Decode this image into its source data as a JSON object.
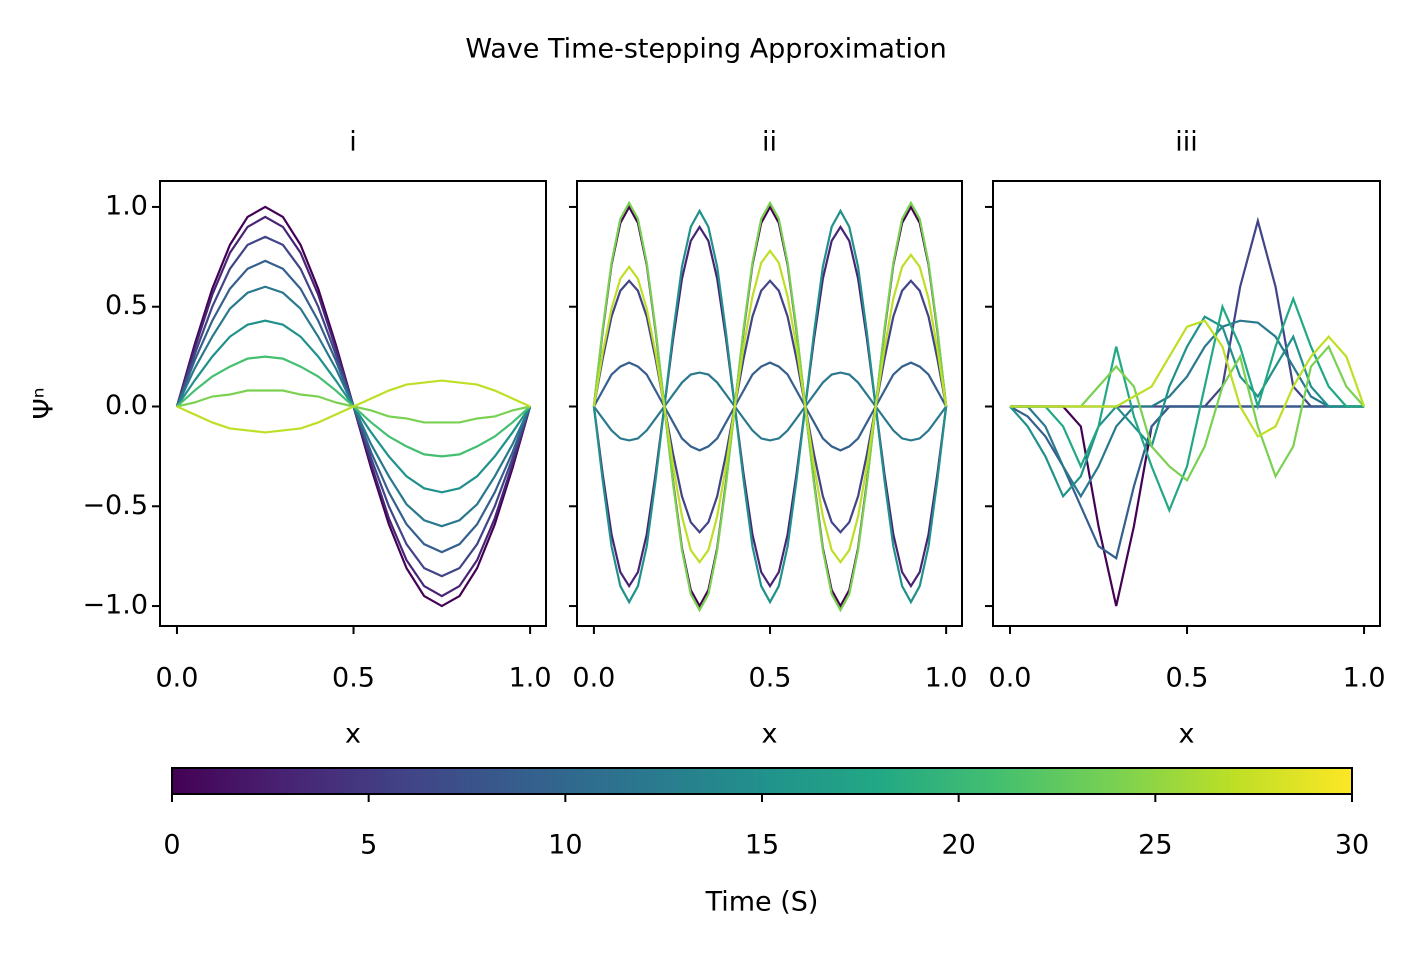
{
  "title": "Wave Time-stepping Approximation",
  "chart_data": [
    {
      "type": "line",
      "title": "i",
      "x_label": "x",
      "y_label": "Ψⁿ",
      "xlim": [
        -0.048,
        1.045
      ],
      "ylim": [
        -1.1,
        1.13
      ],
      "xticks": [
        {
          "value": 0,
          "label": "0.0"
        },
        {
          "value": 0.5,
          "label": "0.5"
        },
        {
          "value": 1,
          "label": "1.0"
        }
      ],
      "yticks": [
        {
          "value": -1,
          "label": "−1.0"
        },
        {
          "value": -0.5,
          "label": "−0.5"
        },
        {
          "value": 0,
          "label": "0.0"
        },
        {
          "value": 0.5,
          "label": "0.5"
        },
        {
          "value": 1,
          "label": "1.0"
        }
      ],
      "x": [
        0,
        0.05,
        0.1,
        0.15,
        0.2,
        0.25,
        0.3,
        0.35,
        0.4,
        0.45,
        0.5,
        0.55,
        0.6,
        0.65,
        0.7,
        0.75,
        0.8,
        0.85,
        0.9,
        0.95,
        1
      ],
      "series": [
        {
          "color": "#440154",
          "values": [
            0,
            0.31,
            0.59,
            0.81,
            0.95,
            1,
            0.95,
            0.81,
            0.59,
            0.31,
            0,
            -0.31,
            -0.59,
            -0.81,
            -0.95,
            -1,
            -0.95,
            -0.81,
            -0.59,
            -0.31,
            0
          ]
        },
        {
          "color": "#482475",
          "values": [
            0,
            0.29,
            0.56,
            0.77,
            0.9,
            0.95,
            0.9,
            0.77,
            0.56,
            0.29,
            0,
            -0.29,
            -0.56,
            -0.77,
            -0.9,
            -0.95,
            -0.9,
            -0.77,
            -0.56,
            -0.29,
            0
          ]
        },
        {
          "color": "#414487",
          "values": [
            0,
            0.26,
            0.5,
            0.69,
            0.81,
            0.85,
            0.81,
            0.69,
            0.5,
            0.26,
            0,
            -0.26,
            -0.5,
            -0.69,
            -0.81,
            -0.85,
            -0.81,
            -0.69,
            -0.5,
            -0.26,
            0
          ]
        },
        {
          "color": "#355f8d",
          "values": [
            0,
            0.23,
            0.43,
            0.59,
            0.69,
            0.73,
            0.69,
            0.59,
            0.43,
            0.23,
            0,
            -0.23,
            -0.43,
            -0.59,
            -0.69,
            -0.73,
            -0.69,
            -0.59,
            -0.43,
            -0.23,
            0
          ]
        },
        {
          "color": "#2a788e",
          "values": [
            0,
            0.19,
            0.35,
            0.49,
            0.57,
            0.6,
            0.57,
            0.49,
            0.35,
            0.19,
            0,
            -0.19,
            -0.35,
            -0.49,
            -0.57,
            -0.6,
            -0.57,
            -0.49,
            -0.35,
            -0.19,
            0
          ]
        },
        {
          "color": "#21918c",
          "values": [
            0,
            0.13,
            0.25,
            0.35,
            0.41,
            0.43,
            0.41,
            0.35,
            0.25,
            0.13,
            0,
            -0.13,
            -0.25,
            -0.35,
            -0.41,
            -0.43,
            -0.41,
            -0.35,
            -0.25,
            -0.13,
            0
          ]
        },
        {
          "color": "#44bf70",
          "values": [
            0,
            0.08,
            0.15,
            0.2,
            0.24,
            0.25,
            0.24,
            0.2,
            0.15,
            0.08,
            0,
            -0.08,
            -0.15,
            -0.2,
            -0.24,
            -0.25,
            -0.24,
            -0.2,
            -0.15,
            -0.08,
            0
          ]
        },
        {
          "color": "#7ad151",
          "values": [
            0,
            0.02,
            0.05,
            0.06,
            0.08,
            0.08,
            0.08,
            0.06,
            0.05,
            0.02,
            0,
            -0.02,
            -0.05,
            -0.06,
            -0.08,
            -0.08,
            -0.08,
            -0.06,
            -0.05,
            -0.02,
            0
          ]
        },
        {
          "color": "#bddf26",
          "values": [
            0,
            -0.04,
            -0.08,
            -0.11,
            -0.12,
            -0.13,
            -0.12,
            -0.11,
            -0.08,
            -0.04,
            0,
            0.04,
            0.08,
            0.11,
            0.12,
            0.13,
            0.12,
            0.11,
            0.08,
            0.04,
            0
          ]
        }
      ]
    },
    {
      "type": "line",
      "title": "ii",
      "x_label": "x",
      "xlim": [
        -0.048,
        1.045
      ],
      "ylim": [
        -1.1,
        1.13
      ],
      "xticks": [
        {
          "value": 0,
          "label": "0.0"
        },
        {
          "value": 0.5,
          "label": "0.5"
        },
        {
          "value": 1,
          "label": "1.0"
        }
      ],
      "yticks": [
        -1,
        -0.5,
        0,
        0.5,
        1
      ],
      "x": [
        0,
        0.025,
        0.05,
        0.075,
        0.1,
        0.125,
        0.15,
        0.175,
        0.2,
        0.225,
        0.25,
        0.275,
        0.3,
        0.325,
        0.35,
        0.375,
        0.4,
        0.425,
        0.45,
        0.475,
        0.5,
        0.525,
        0.55,
        0.575,
        0.6,
        0.625,
        0.65,
        0.675,
        0.7,
        0.725,
        0.75,
        0.775,
        0.8,
        0.825,
        0.85,
        0.875,
        0.9,
        0.925,
        0.95,
        0.975,
        1
      ],
      "series": [
        {
          "color": "#440154",
          "values": [
            0,
            0.38,
            0.71,
            0.92,
            1,
            0.92,
            0.71,
            0.38,
            0,
            -0.38,
            -0.71,
            -0.92,
            -1,
            -0.92,
            -0.71,
            -0.38,
            0,
            0.38,
            0.71,
            0.92,
            1,
            0.92,
            0.71,
            0.38,
            0,
            -0.38,
            -0.71,
            -0.92,
            -1,
            -0.92,
            -0.71,
            -0.38,
            0,
            0.38,
            0.71,
            0.92,
            1,
            0.92,
            0.71,
            0.38,
            0
          ]
        },
        {
          "color": "#482475",
          "values": [
            0,
            -0.34,
            -0.64,
            -0.83,
            -0.9,
            -0.83,
            -0.64,
            -0.34,
            0,
            0.34,
            0.64,
            0.83,
            0.9,
            0.83,
            0.64,
            0.34,
            0,
            -0.34,
            -0.64,
            -0.83,
            -0.9,
            -0.83,
            -0.64,
            -0.34,
            0,
            0.34,
            0.64,
            0.83,
            0.9,
            0.83,
            0.64,
            0.34,
            0,
            -0.34,
            -0.64,
            -0.83,
            -0.9,
            -0.83,
            -0.64,
            -0.34,
            0
          ]
        },
        {
          "color": "#414487",
          "values": [
            0,
            0.24,
            0.45,
            0.58,
            0.63,
            0.58,
            0.45,
            0.24,
            0,
            -0.24,
            -0.45,
            -0.58,
            -0.63,
            -0.58,
            -0.45,
            -0.24,
            0,
            0.24,
            0.45,
            0.58,
            0.63,
            0.58,
            0.45,
            0.24,
            0,
            -0.24,
            -0.45,
            -0.58,
            -0.63,
            -0.58,
            -0.45,
            -0.24,
            0,
            0.24,
            0.45,
            0.58,
            0.63,
            0.58,
            0.45,
            0.24,
            0
          ]
        },
        {
          "color": "#2a788e",
          "values": [
            0,
            -0.06,
            -0.12,
            -0.16,
            -0.17,
            -0.16,
            -0.12,
            -0.06,
            0,
            0.06,
            0.12,
            0.16,
            0.17,
            0.16,
            0.12,
            0.06,
            0,
            -0.06,
            -0.12,
            -0.16,
            -0.17,
            -0.16,
            -0.12,
            -0.06,
            0,
            0.06,
            0.12,
            0.16,
            0.17,
            0.16,
            0.12,
            0.06,
            0,
            -0.06,
            -0.12,
            -0.16,
            -0.17,
            -0.16,
            -0.12,
            -0.06,
            0
          ]
        },
        {
          "color": "#355f8d",
          "values": [
            0,
            0.08,
            0.16,
            0.2,
            0.22,
            0.2,
            0.16,
            0.08,
            0,
            -0.08,
            -0.16,
            -0.2,
            -0.22,
            -0.2,
            -0.16,
            -0.08,
            0,
            0.08,
            0.16,
            0.2,
            0.22,
            0.2,
            0.16,
            0.08,
            0,
            -0.08,
            -0.16,
            -0.2,
            -0.22,
            -0.2,
            -0.16,
            -0.08,
            0,
            0.08,
            0.16,
            0.2,
            0.22,
            0.2,
            0.16,
            0.08,
            0
          ]
        },
        {
          "color": "#21918c",
          "values": [
            0,
            -0.37,
            -0.7,
            -0.9,
            -0.98,
            -0.9,
            -0.7,
            -0.37,
            0,
            0.37,
            0.7,
            0.9,
            0.98,
            0.9,
            0.7,
            0.37,
            0,
            -0.37,
            -0.7,
            -0.9,
            -0.98,
            -0.9,
            -0.7,
            -0.37,
            0,
            0.37,
            0.7,
            0.9,
            0.98,
            0.9,
            0.7,
            0.37,
            0,
            -0.37,
            -0.7,
            -0.9,
            -0.98,
            -0.9,
            -0.7,
            -0.37,
            0
          ]
        },
        {
          "color": "#7ad151",
          "values": [
            0,
            0.39,
            0.72,
            0.94,
            1.02,
            0.94,
            0.72,
            0.39,
            0,
            -0.39,
            -0.72,
            -0.94,
            -1.02,
            -0.94,
            -0.72,
            -0.39,
            0,
            0.39,
            0.72,
            0.94,
            1.02,
            0.94,
            0.72,
            0.39,
            0,
            -0.39,
            -0.72,
            -0.94,
            -1.02,
            -0.94,
            -0.72,
            -0.39,
            0,
            0.39,
            0.72,
            0.94,
            1.02,
            0.94,
            0.72,
            0.39,
            0
          ]
        },
        {
          "color": "#bddf26",
          "values": [
            0,
            0.27,
            0.49,
            0.64,
            0.7,
            0.64,
            0.49,
            0.27,
            0,
            -0.3,
            -0.55,
            -0.72,
            -0.78,
            -0.72,
            -0.55,
            -0.3,
            0,
            0.3,
            0.55,
            0.72,
            0.78,
            0.72,
            0.55,
            0.3,
            0,
            -0.3,
            -0.55,
            -0.72,
            -0.78,
            -0.72,
            -0.55,
            -0.3,
            0,
            0.29,
            0.54,
            0.7,
            0.76,
            0.7,
            0.54,
            0.29,
            0
          ]
        }
      ]
    },
    {
      "type": "line",
      "title": "iii",
      "x_label": "x",
      "xlim": [
        -0.048,
        1.045
      ],
      "ylim": [
        -1.1,
        1.13
      ],
      "xticks": [
        {
          "value": 0,
          "label": "0.0"
        },
        {
          "value": 0.5,
          "label": "0.5"
        },
        {
          "value": 1,
          "label": "1.0"
        }
      ],
      "yticks": [
        -1,
        -0.5,
        0,
        0.5,
        1
      ],
      "x": [
        0,
        0.05,
        0.1,
        0.15,
        0.2,
        0.25,
        0.3,
        0.35,
        0.4,
        0.45,
        0.5,
        0.55,
        0.6,
        0.65,
        0.7,
        0.75,
        0.8,
        0.85,
        0.9,
        0.95,
        1
      ],
      "series": [
        {
          "color": "#440154",
          "values": [
            0,
            0,
            0,
            0,
            -0.1,
            -0.6,
            -1,
            -0.6,
            -0.1,
            0,
            0,
            0,
            0,
            0,
            0,
            0,
            0,
            0,
            0,
            0,
            0
          ]
        },
        {
          "color": "#414487",
          "values": [
            0,
            0,
            0,
            0,
            0,
            0,
            0,
            0,
            0,
            0,
            0,
            0,
            0.1,
            0.6,
            0.93,
            0.6,
            0.1,
            0,
            0,
            0,
            0
          ]
        },
        {
          "color": "#355f8d",
          "values": [
            0,
            -0.05,
            -0.15,
            -0.3,
            -0.5,
            -0.7,
            -0.76,
            -0.4,
            -0.1,
            0,
            0,
            0,
            0,
            0,
            0,
            0,
            0,
            0,
            0,
            0,
            0
          ]
        },
        {
          "color": "#2a788e",
          "values": [
            0,
            0,
            -0.1,
            -0.3,
            -0.45,
            -0.3,
            -0.1,
            0,
            0,
            0.05,
            0.15,
            0.3,
            0.4,
            0.43,
            0.42,
            0.35,
            0.2,
            0.05,
            0,
            0,
            0
          ]
        },
        {
          "color": "#21918c",
          "values": [
            0,
            -0.1,
            -0.25,
            -0.45,
            -0.35,
            -0.1,
            0,
            -0.1,
            -0.2,
            0.1,
            0.3,
            0.45,
            0.4,
            0.15,
            0.05,
            0.2,
            0.35,
            0.1,
            0,
            0,
            0
          ]
        },
        {
          "color": "#22a884",
          "values": [
            0,
            0,
            0,
            -0.1,
            -0.3,
            -0.1,
            0.3,
            -0.05,
            -0.3,
            -0.52,
            -0.3,
            0.1,
            0.5,
            0.3,
            0,
            0.3,
            0.54,
            0.3,
            0.1,
            0,
            0
          ]
        },
        {
          "color": "#7ad151",
          "values": [
            0,
            0,
            0,
            0,
            0,
            0.1,
            0.2,
            0.1,
            -0.2,
            -0.3,
            -0.37,
            -0.2,
            0.1,
            0.25,
            -0.1,
            -0.35,
            -0.2,
            0.2,
            0.3,
            0.1,
            0
          ]
        },
        {
          "color": "#bddf26",
          "values": [
            0,
            0,
            0,
            0,
            0,
            0,
            0,
            0.05,
            0.1,
            0.25,
            0.4,
            0.43,
            0.3,
            0,
            -0.15,
            -0.1,
            0.1,
            0.25,
            0.35,
            0.25,
            0
          ]
        }
      ]
    }
  ],
  "colorbar": {
    "label": "Time (S)",
    "lim": [
      0,
      30
    ],
    "ticks": [
      0,
      5,
      10,
      15,
      20,
      25,
      30
    ],
    "colors": [
      "#440154",
      "#482475",
      "#414487",
      "#355f8d",
      "#2a788e",
      "#21918c",
      "#22a884",
      "#44bf70",
      "#7ad151",
      "#bddf26",
      "#fde725"
    ]
  }
}
